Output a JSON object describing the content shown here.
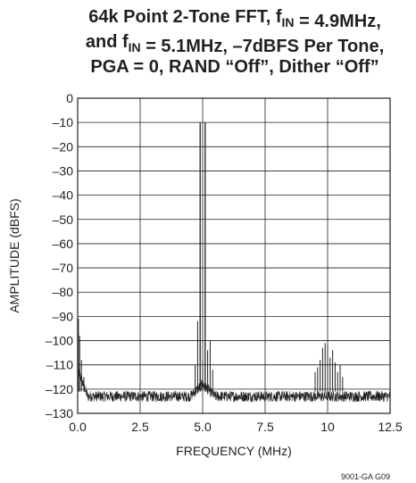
{
  "chart_data": {
    "type": "line",
    "title_lines": [
      [
        {
          "t": "64k Point 2-Tone FFT, f"
        },
        {
          "t": "IN",
          "sub": true
        },
        {
          "t": " = 4.9MHz,"
        }
      ],
      [
        {
          "t": "and f"
        },
        {
          "t": "IN",
          "sub": true
        },
        {
          "t": " = 5.1MHz, –7dBFS Per Tone,"
        }
      ],
      [
        {
          "t": "PGA = 0, RAND “Off”, Dither “Off”"
        }
      ]
    ],
    "xlabel": "FREQUENCY (MHz)",
    "ylabel": "AMPLITUDE (dBFS)",
    "xlim": [
      0,
      12.5
    ],
    "ylim": [
      -130,
      0
    ],
    "xticks": [
      0,
      2.5,
      5,
      7.5,
      10,
      12.5
    ],
    "xtick_labels": [
      "0.0",
      "2.5",
      "5.0",
      "7.5",
      "10",
      "12.5"
    ],
    "yticks": [
      0,
      -10,
      -20,
      -30,
      -40,
      -50,
      -60,
      -70,
      -80,
      -90,
      -100,
      -110,
      -120,
      -130
    ],
    "ytick_labels": [
      "0",
      "–10",
      "–20",
      "–30",
      "–40",
      "–50",
      "–60",
      "–70",
      "–80",
      "–90",
      "–100",
      "–110",
      "–120",
      "–130"
    ],
    "grid": true,
    "line_color": "#231f20",
    "noise_floor": -123,
    "series": [
      {
        "peaks": [
          {
            "x": 0.0,
            "y": -100
          },
          {
            "x": 0.03,
            "y": -91
          },
          {
            "x": 0.08,
            "y": -98
          },
          {
            "x": 0.15,
            "y": -108
          },
          {
            "x": 0.25,
            "y": -115
          },
          {
            "x": 4.7,
            "y": -110
          },
          {
            "x": 4.8,
            "y": -92
          },
          {
            "x": 4.9,
            "y": -10
          },
          {
            "x": 5.0,
            "y": -108
          },
          {
            "x": 5.1,
            "y": -10
          },
          {
            "x": 5.2,
            "y": -104
          },
          {
            "x": 5.3,
            "y": -100
          },
          {
            "x": 5.4,
            "y": -112
          },
          {
            "x": 9.5,
            "y": -113
          },
          {
            "x": 9.6,
            "y": -111
          },
          {
            "x": 9.7,
            "y": -108
          },
          {
            "x": 9.8,
            "y": -103
          },
          {
            "x": 9.9,
            "y": -101
          },
          {
            "x": 10.0,
            "y": -102
          },
          {
            "x": 10.1,
            "y": -107
          },
          {
            "x": 10.2,
            "y": -104
          },
          {
            "x": 10.3,
            "y": -109
          },
          {
            "x": 10.4,
            "y": -113
          },
          {
            "x": 10.5,
            "y": -110
          },
          {
            "x": 10.6,
            "y": -115
          }
        ]
      }
    ],
    "annotation": "9001-GA G09"
  }
}
